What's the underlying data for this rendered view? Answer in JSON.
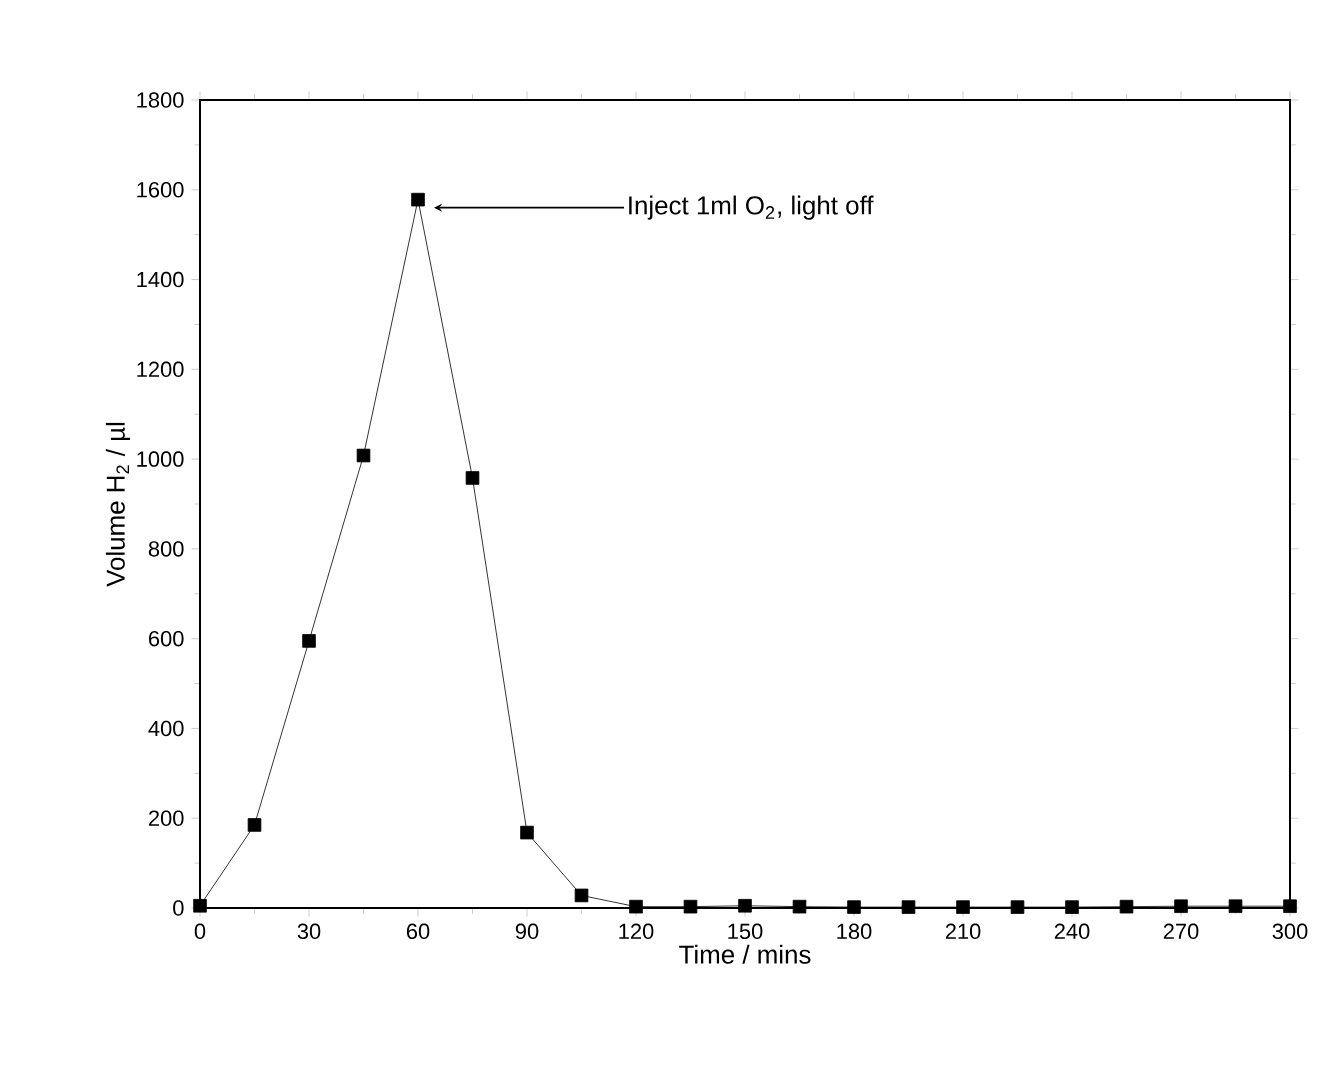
{
  "chart_data": {
    "type": "line",
    "xlabel": "Time / mins",
    "ylabel": "Volume H$_{2}$ / µl",
    "x": [
      0,
      15,
      30,
      45,
      60,
      75,
      90,
      105,
      120,
      135,
      150,
      165,
      180,
      195,
      210,
      225,
      240,
      255,
      270,
      285,
      300
    ],
    "values": [
      5,
      185,
      595,
      1008,
      1578,
      958,
      168,
      28,
      3,
      3,
      5,
      3,
      2,
      2,
      2,
      2,
      2,
      3,
      4,
      4,
      4
    ],
    "color": "#000000",
    "marker": "square",
    "line_style": "solid",
    "xlim": [
      0,
      300
    ],
    "xticks": [
      0,
      30,
      60,
      90,
      120,
      150,
      180,
      210,
      240,
      270,
      300
    ],
    "ylim": [
      0,
      1800
    ],
    "yticks": [
      0,
      200,
      400,
      600,
      800,
      1000,
      1200,
      1400,
      1600,
      1800
    ],
    "annotations": [
      "Inject 1ml O$_{2}$, light off"
    ]
  }
}
